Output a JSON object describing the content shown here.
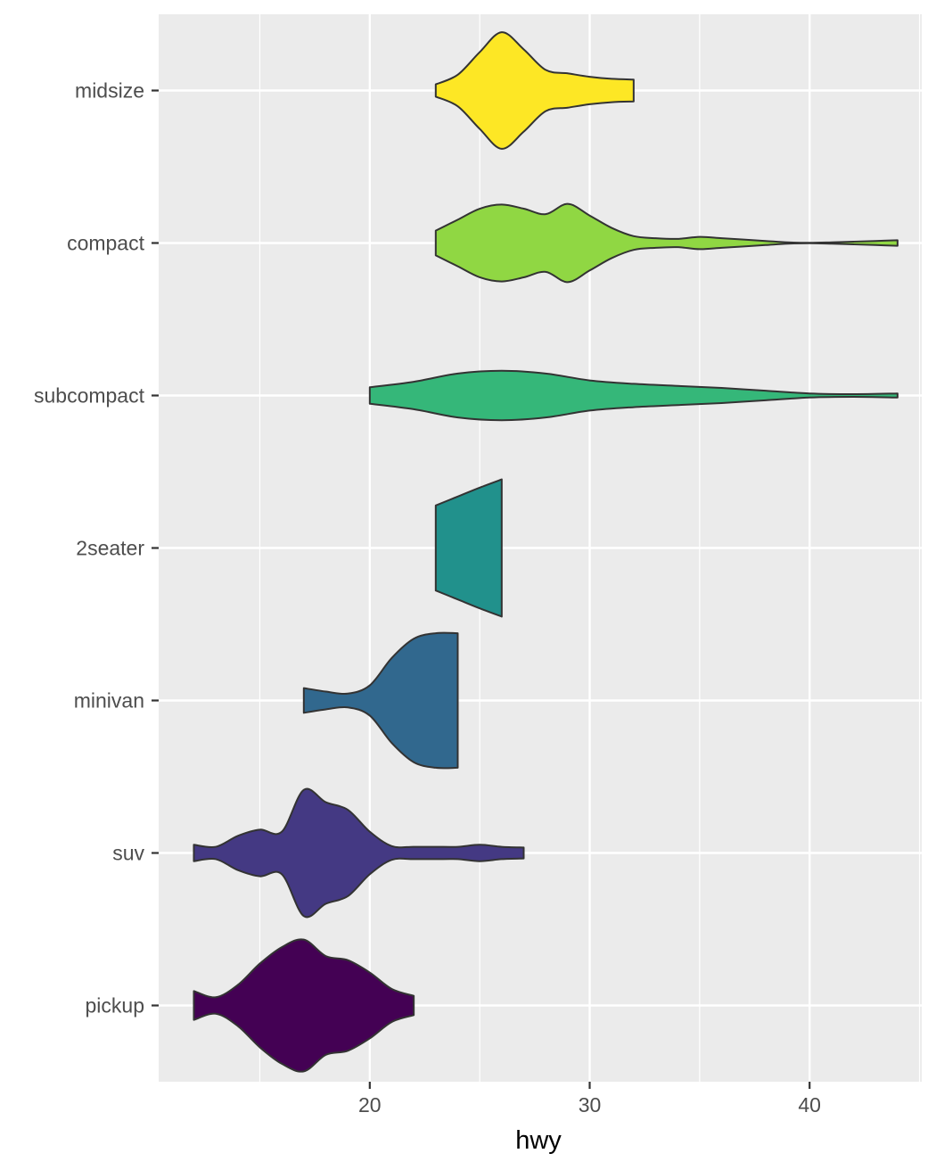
{
  "chart_data": {
    "type": "violin",
    "orientation": "horizontal",
    "title": "",
    "xlabel": "hwy",
    "ylabel": "",
    "xlim": [
      10.4,
      45.1
    ],
    "x_ticks": [
      20,
      30,
      40
    ],
    "categories": [
      "pickup",
      "suv",
      "minivan",
      "2seater",
      "subcompact",
      "compact",
      "midsize"
    ],
    "colors": {
      "pickup": "#440154",
      "suv": "#443983",
      "minivan": "#31688e",
      "2seater": "#21918c",
      "subcompact": "#35b779",
      "compact": "#90d743",
      "midsize": "#fde725"
    },
    "outline_color": "#333333",
    "panel_background": "#ebebeb",
    "grid": true,
    "legend": "none",
    "series": [
      {
        "category": "pickup",
        "x": [
          12,
          13,
          14,
          15,
          16,
          17,
          18,
          19,
          20,
          21,
          22
        ],
        "width": [
          0.21,
          0.12,
          0.3,
          0.61,
          0.85,
          0.96,
          0.72,
          0.66,
          0.48,
          0.24,
          0.14
        ]
      },
      {
        "category": "suv",
        "x": [
          12,
          13,
          14,
          15,
          16,
          17,
          18,
          19,
          20,
          21,
          22,
          23,
          24,
          25,
          26,
          27
        ],
        "width": [
          0.12,
          0.09,
          0.25,
          0.34,
          0.31,
          0.92,
          0.74,
          0.63,
          0.31,
          0.1,
          0.09,
          0.09,
          0.09,
          0.12,
          0.09,
          0.08
        ]
      },
      {
        "category": "minivan",
        "x": [
          17,
          18,
          19,
          20,
          21,
          22,
          23,
          24
        ],
        "width": [
          0.18,
          0.13,
          0.1,
          0.22,
          0.62,
          0.9,
          0.98,
          0.98
        ]
      },
      {
        "category": "2seater",
        "x": [
          23,
          24,
          25,
          26
        ],
        "width": [
          0.62,
          0.75,
          0.88,
          1.0
        ]
      },
      {
        "category": "subcompact",
        "x": [
          20,
          22,
          24,
          26,
          28,
          30,
          32,
          34,
          36,
          38,
          40,
          42,
          44
        ],
        "width": [
          0.12,
          0.2,
          0.32,
          0.36,
          0.32,
          0.22,
          0.17,
          0.14,
          0.11,
          0.07,
          0.03,
          0.02,
          0.03
        ]
      },
      {
        "category": "compact",
        "x": [
          23,
          24,
          25,
          26,
          27,
          28,
          29,
          30,
          31,
          32,
          33,
          34,
          35,
          36,
          37,
          38,
          39,
          40,
          41,
          42,
          43,
          44
        ],
        "width": [
          0.18,
          0.34,
          0.5,
          0.56,
          0.5,
          0.42,
          0.57,
          0.4,
          0.22,
          0.1,
          0.07,
          0.06,
          0.09,
          0.07,
          0.05,
          0.03,
          0.01,
          0.003,
          0.01,
          0.02,
          0.03,
          0.04
        ]
      },
      {
        "category": "midsize",
        "x": [
          23,
          24,
          25,
          26,
          27,
          28,
          29,
          30,
          31,
          32
        ],
        "width": [
          0.09,
          0.23,
          0.56,
          0.85,
          0.6,
          0.3,
          0.25,
          0.2,
          0.17,
          0.16
        ]
      }
    ]
  }
}
